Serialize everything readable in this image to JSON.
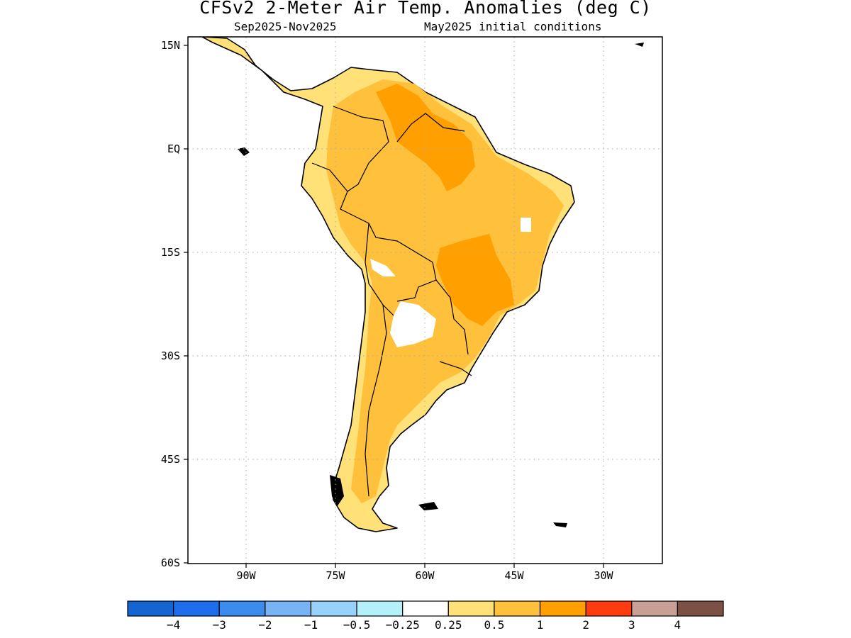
{
  "title": "CFSv2 2-Meter Air Temp. Anomalies (deg C)",
  "subtitle_left": "Sep2025-Nov2025",
  "subtitle_right": "May2025 initial conditions",
  "lat_labels": [
    "15N",
    "EQ",
    "15S",
    "30S",
    "45S",
    "60S"
  ],
  "lon_labels": [
    "90W",
    "75W",
    "60W",
    "45W",
    "30W"
  ],
  "colorbar": {
    "colors": [
      "#1565d0",
      "#1e6eeb",
      "#3c8cf0",
      "#78b4f5",
      "#96d2fa",
      "#b4f0fa",
      "#ffffff",
      "#ffe178",
      "#ffc03c",
      "#ffa000",
      "#ff3c0f",
      "#c8a096",
      "#7d5046"
    ],
    "labels": [
      "-4",
      "-3",
      "-2",
      "-1",
      "-0.5",
      "-0.25",
      "0.25",
      "0.5",
      "1",
      "2",
      "3",
      "4"
    ]
  },
  "anomaly_colors": {
    "light": "#ffe178",
    "medium": "#ffc03c",
    "strong": "#ffa000",
    "neutral": "#ffffff"
  }
}
